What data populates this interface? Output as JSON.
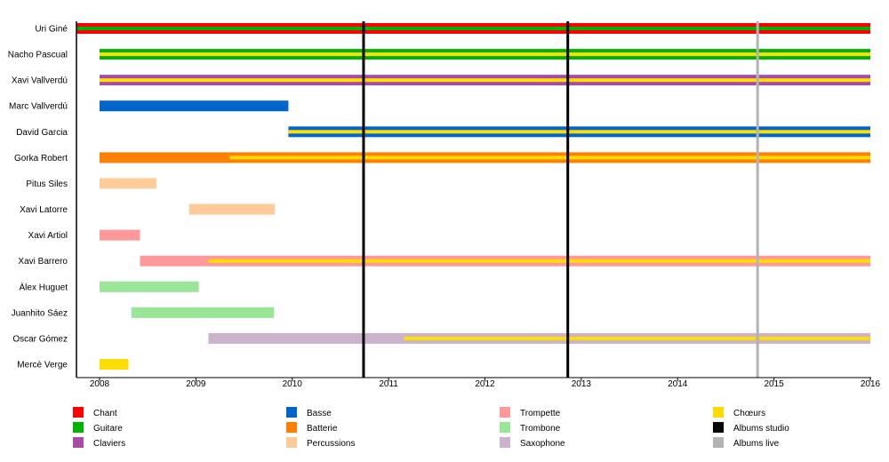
{
  "chart_data": {
    "type": "timeline",
    "xlim": [
      2007.76,
      2016.0
    ],
    "x_ticks": [
      2008,
      2009,
      2010,
      2011,
      2012,
      2013,
      2014,
      2015,
      2016
    ],
    "colors": {
      "Chant": "#ff0000",
      "Guitare": "#00b300",
      "Claviers": "#a64ca6",
      "Basse": "#0066cc",
      "Batterie": "#ff8000",
      "Percussions": "#ffcc99",
      "Trompette": "#ff9999",
      "Trombone": "#99e699",
      "Saxophone": "#ccb3cc",
      "Chœurs": "#ffdd00",
      "Albums studio": "#000000",
      "Albums live": "#b3b3b3"
    },
    "members": [
      {
        "name": "Uri Giné",
        "bars": [
          {
            "role": "Chant",
            "start": 2007.76,
            "end": 2016.0,
            "stripe": "Guitare",
            "stripe_start": 2007.76
          }
        ]
      },
      {
        "name": "Nacho Pascual",
        "bars": [
          {
            "role": "Guitare",
            "start": 2008.0,
            "end": 2016.0,
            "stripe": "Chœurs",
            "stripe_start": 2008.0
          }
        ]
      },
      {
        "name": "Xavi Vallverdú",
        "bars": [
          {
            "role": "Claviers",
            "start": 2008.0,
            "end": 2016.0,
            "stripe": "Chœurs",
            "stripe_start": 2008.0
          }
        ]
      },
      {
        "name": "Marc Vallverdú",
        "bars": [
          {
            "role": "Basse",
            "start": 2008.0,
            "end": 2009.96
          }
        ]
      },
      {
        "name": "David Garcia",
        "bars": [
          {
            "role": "Basse",
            "start": 2009.96,
            "end": 2016.0,
            "stripe": "Chœurs",
            "stripe_start": 2009.96
          }
        ]
      },
      {
        "name": "Gorka Robert",
        "bars": [
          {
            "role": "Batterie",
            "start": 2008.0,
            "end": 2016.0,
            "stripe": "Chœurs",
            "stripe_start": 2009.35
          }
        ]
      },
      {
        "name": "Pitus Siles",
        "bars": [
          {
            "role": "Percussions",
            "start": 2008.0,
            "end": 2008.59
          }
        ]
      },
      {
        "name": "Xavi Latorre",
        "bars": [
          {
            "role": "Percussions",
            "start": 2008.93,
            "end": 2009.82
          }
        ]
      },
      {
        "name": "Xavi Artiol",
        "bars": [
          {
            "role": "Trompette",
            "start": 2008.0,
            "end": 2008.42
          }
        ]
      },
      {
        "name": "Xavi Barrero",
        "bars": [
          {
            "role": "Trompette",
            "start": 2008.42,
            "end": 2016.0,
            "stripe": "Chœurs",
            "stripe_start": 2009.13
          }
        ]
      },
      {
        "name": "Àlex Huguet",
        "bars": [
          {
            "role": "Trombone",
            "start": 2008.0,
            "end": 2009.03
          }
        ]
      },
      {
        "name": "Juanhito Sáez",
        "bars": [
          {
            "role": "Trombone",
            "start": 2008.33,
            "end": 2009.81
          }
        ]
      },
      {
        "name": "Oscar Gómez",
        "bars": [
          {
            "role": "Saxophone",
            "start": 2009.13,
            "end": 2016.0,
            "stripe": "Chœurs",
            "stripe_start": 2011.16
          }
        ]
      },
      {
        "name": "Mercè Verge",
        "bars": [
          {
            "role": "Chœurs",
            "start": 2008.0,
            "end": 2008.3
          }
        ]
      }
    ],
    "albums_studio": [
      2010.74,
      2012.86
    ],
    "albums_live": [
      2014.83
    ],
    "legend": {
      "placement": "bottom",
      "columns": [
        [
          "Chant",
          "Guitare",
          "Claviers"
        ],
        [
          "Basse",
          "Batterie",
          "Percussions"
        ],
        [
          "Trompette",
          "Trombone",
          "Saxophone"
        ],
        [
          "Chœurs",
          "Albums studio",
          "Albums live"
        ]
      ]
    }
  }
}
